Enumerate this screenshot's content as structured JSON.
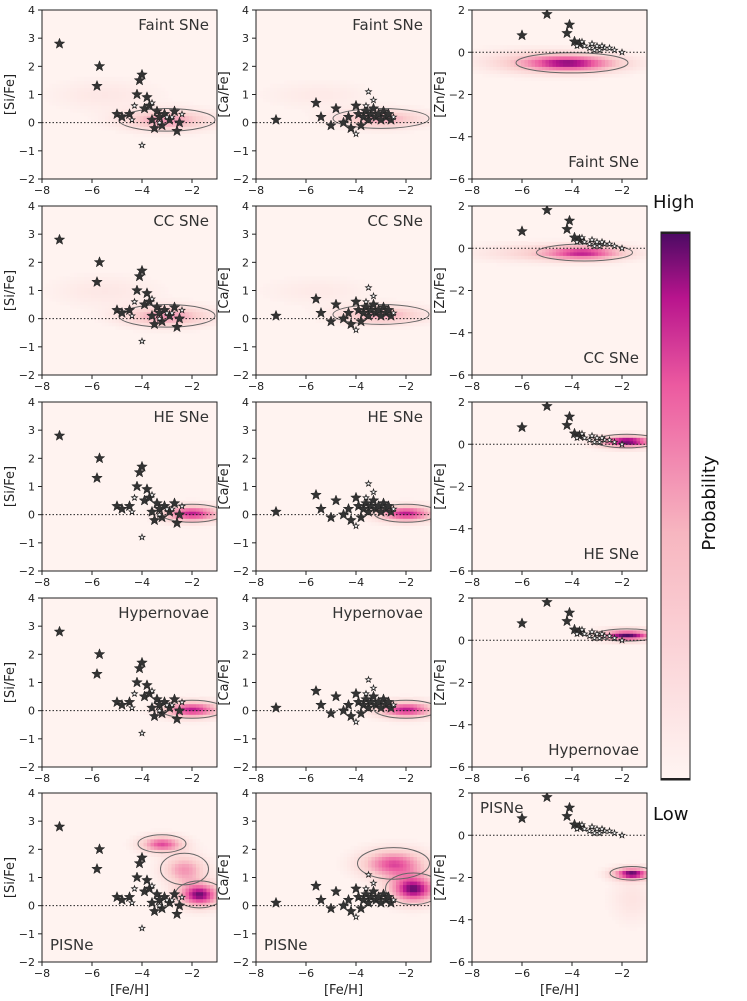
{
  "chart_data": {
    "type": "heatmap",
    "colorbar": {
      "title": "Probability",
      "high_label": "High",
      "low_label": "Low",
      "color_low": "#fff5f2",
      "color_mid": "#f27bb0",
      "color_high": "#4a0a63"
    },
    "xlabel": "[Fe/H]",
    "xlim": [
      -8,
      -1
    ],
    "xticks": [
      -8,
      -6,
      -4,
      -2
    ],
    "columns": [
      {
        "element": "Si",
        "ylabel": "[Si/Fe]",
        "ylim": [
          -2,
          4
        ],
        "yticks": [
          -2,
          -1,
          0,
          1,
          2,
          3,
          4
        ]
      },
      {
        "element": "Ca",
        "ylabel": "[Ca/Fe]",
        "ylim": [
          -2,
          4
        ],
        "yticks": [
          -2,
          -1,
          0,
          1,
          2,
          3,
          4
        ]
      },
      {
        "element": "Zn",
        "ylabel": "[Zn/Fe]",
        "ylim": [
          -6,
          2
        ],
        "yticks": [
          -6,
          -4,
          -2,
          0,
          2
        ]
      }
    ],
    "rows": [
      {
        "model": "Faint SNe",
        "panels": [
          {
            "label_pos": "top-right",
            "peak": {
              "x": -3.0,
              "y": 0.1
            },
            "blobs": [
              {
                "x": -3.0,
                "y": 0.1,
                "sx": 1.2,
                "sy": 0.25,
                "w": 0.55
              },
              {
                "x": -5.5,
                "y": 1.0,
                "sx": 1.5,
                "sy": 0.4,
                "w": 0.12
              }
            ]
          },
          {
            "label_pos": "top-right",
            "peak": {
              "x": -3.0,
              "y": 0.15
            },
            "blobs": [
              {
                "x": -3.0,
                "y": 0.15,
                "sx": 1.2,
                "sy": 0.22,
                "w": 0.5
              },
              {
                "x": -5.5,
                "y": 1.0,
                "sx": 1.5,
                "sy": 0.35,
                "w": 0.1
              }
            ]
          },
          {
            "label_pos": "bottom-right",
            "peak": {
              "x": -4.0,
              "y": -0.5
            },
            "blobs": [
              {
                "x": -4.0,
                "y": -0.5,
                "sx": 1.4,
                "sy": 0.3,
                "w": 0.85
              },
              {
                "x": -6.0,
                "y": -0.4,
                "sx": 1.5,
                "sy": 0.4,
                "w": 0.2
              }
            ]
          }
        ]
      },
      {
        "model": "CC SNe",
        "panels": [
          {
            "label_pos": "top-right",
            "peak": {
              "x": -3.0,
              "y": 0.1
            },
            "blobs": [
              {
                "x": -3.0,
                "y": 0.1,
                "sx": 1.2,
                "sy": 0.25,
                "w": 0.55
              },
              {
                "x": -5.5,
                "y": 1.0,
                "sx": 1.5,
                "sy": 0.4,
                "w": 0.12
              }
            ]
          },
          {
            "label_pos": "top-right",
            "peak": {
              "x": -3.0,
              "y": 0.15
            },
            "blobs": [
              {
                "x": -3.0,
                "y": 0.15,
                "sx": 1.2,
                "sy": 0.22,
                "w": 0.5
              },
              {
                "x": -5.5,
                "y": 1.0,
                "sx": 1.5,
                "sy": 0.35,
                "w": 0.1
              }
            ]
          },
          {
            "label_pos": "bottom-right",
            "peak": {
              "x": -3.5,
              "y": -0.2
            },
            "blobs": [
              {
                "x": -3.5,
                "y": -0.2,
                "sx": 1.2,
                "sy": 0.25,
                "w": 0.8
              },
              {
                "x": -6.0,
                "y": -0.2,
                "sx": 1.5,
                "sy": 0.3,
                "w": 0.2
              }
            ]
          }
        ]
      },
      {
        "model": "HE SNe",
        "panels": [
          {
            "label_pos": "top-right",
            "peak": {
              "x": -2.0,
              "y": 0.05
            },
            "blobs": [
              {
                "x": -2.0,
                "y": 0.05,
                "sx": 0.8,
                "sy": 0.2,
                "w": 0.85
              }
            ]
          },
          {
            "label_pos": "top-right",
            "peak": {
              "x": -2.0,
              "y": 0.05
            },
            "blobs": [
              {
                "x": -2.0,
                "y": 0.05,
                "sx": 0.8,
                "sy": 0.2,
                "w": 0.85
              }
            ]
          },
          {
            "label_pos": "bottom-right",
            "peak": {
              "x": -1.8,
              "y": 0.15
            },
            "blobs": [
              {
                "x": -1.8,
                "y": 0.15,
                "sx": 0.8,
                "sy": 0.2,
                "w": 1.0
              }
            ]
          }
        ]
      },
      {
        "model": "Hypernovae",
        "panels": [
          {
            "label_pos": "top-right",
            "peak": {
              "x": -2.0,
              "y": 0.05
            },
            "blobs": [
              {
                "x": -2.0,
                "y": 0.05,
                "sx": 0.8,
                "sy": 0.2,
                "w": 0.85
              }
            ]
          },
          {
            "label_pos": "top-right",
            "peak": {
              "x": -2.0,
              "y": 0.05
            },
            "blobs": [
              {
                "x": -2.0,
                "y": 0.05,
                "sx": 0.8,
                "sy": 0.2,
                "w": 0.85
              }
            ]
          },
          {
            "label_pos": "bottom-right",
            "peak": {
              "x": -1.8,
              "y": 0.25
            },
            "blobs": [
              {
                "x": -1.8,
                "y": 0.25,
                "sx": 0.8,
                "sy": 0.18,
                "w": 1.0
              }
            ]
          }
        ]
      },
      {
        "model": "PISNe",
        "panels": [
          {
            "label_pos": "bottom-left",
            "peak": {
              "x": -2.0,
              "y": 0.5
            },
            "blobs": [
              {
                "x": -3.2,
                "y": 2.2,
                "sx": 0.6,
                "sy": 0.2,
                "w": 0.75
              },
              {
                "x": -2.3,
                "y": 1.3,
                "sx": 0.6,
                "sy": 0.35,
                "w": 0.55
              },
              {
                "x": -1.7,
                "y": 0.4,
                "sx": 0.6,
                "sy": 0.3,
                "w": 0.95
              }
            ]
          },
          {
            "label_pos": "bottom-left",
            "peak": {
              "x": -1.8,
              "y": 0.5
            },
            "blobs": [
              {
                "x": -2.5,
                "y": 1.5,
                "sx": 0.9,
                "sy": 0.35,
                "w": 0.75
              },
              {
                "x": -1.7,
                "y": 0.6,
                "sx": 0.7,
                "sy": 0.35,
                "w": 0.95
              }
            ]
          },
          {
            "label_pos": "top-left",
            "peak": {
              "x": -1.6,
              "y": -1.8
            },
            "blobs": [
              {
                "x": -1.6,
                "y": -1.8,
                "sx": 0.55,
                "sy": 0.2,
                "w": 0.95
              },
              {
                "x": -1.6,
                "y": -3.0,
                "sx": 0.6,
                "sy": 0.8,
                "w": 0.15
              }
            ]
          }
        ]
      }
    ],
    "observed_stars": {
      "Si": [
        [
          -7.3,
          2.8,
          "big"
        ],
        [
          -5.7,
          2.0,
          "big"
        ],
        [
          -5.8,
          1.3,
          "big"
        ],
        [
          -5.0,
          0.3,
          "big"
        ],
        [
          -4.8,
          0.2,
          "big"
        ],
        [
          -4.5,
          0.3,
          "big"
        ],
        [
          -4.2,
          1.0,
          "big"
        ],
        [
          -4.0,
          1.7,
          "big"
        ],
        [
          -4.1,
          1.5,
          "big"
        ],
        [
          -3.8,
          0.9,
          "big"
        ],
        [
          -3.9,
          0.5,
          "big"
        ],
        [
          -3.7,
          0.6,
          "big"
        ],
        [
          -3.6,
          0.1,
          "big"
        ],
        [
          -3.4,
          0.4,
          "big"
        ],
        [
          -3.3,
          0.2,
          "big"
        ],
        [
          -3.1,
          0.3,
          "big"
        ],
        [
          -2.9,
          0.1,
          "big"
        ],
        [
          -2.7,
          0.4,
          "big"
        ],
        [
          -2.5,
          0.0,
          "big"
        ],
        [
          -2.6,
          -0.3,
          "big"
        ],
        [
          -3.5,
          -0.2,
          "big"
        ],
        [
          -3.2,
          -0.1,
          "big"
        ],
        [
          -4.4,
          0.1,
          "small"
        ],
        [
          -3.0,
          0.2,
          "small"
        ],
        [
          -3.3,
          0.0,
          "small"
        ],
        [
          -2.8,
          0.2,
          "small"
        ],
        [
          -4.0,
          -0.8,
          "small"
        ],
        [
          -3.6,
          0.7,
          "small"
        ],
        [
          -4.3,
          0.6,
          "small"
        ],
        [
          -2.4,
          0.3,
          "small"
        ]
      ],
      "Ca": [
        [
          -7.2,
          0.1,
          "big"
        ],
        [
          -5.6,
          0.7,
          "big"
        ],
        [
          -5.4,
          0.2,
          "big"
        ],
        [
          -5.0,
          -0.1,
          "big"
        ],
        [
          -4.8,
          0.5,
          "big"
        ],
        [
          -4.5,
          0.0,
          "big"
        ],
        [
          -4.3,
          0.2,
          "big"
        ],
        [
          -4.2,
          -0.2,
          "big"
        ],
        [
          -4.0,
          0.6,
          "big"
        ],
        [
          -3.9,
          0.3,
          "big"
        ],
        [
          -3.7,
          0.2,
          "big"
        ],
        [
          -3.6,
          0.4,
          "big"
        ],
        [
          -3.5,
          0.1,
          "big"
        ],
        [
          -3.4,
          0.3,
          "big"
        ],
        [
          -3.3,
          0.5,
          "big"
        ],
        [
          -3.2,
          0.2,
          "big"
        ],
        [
          -3.1,
          0.3,
          "big"
        ],
        [
          -3.0,
          0.1,
          "big"
        ],
        [
          -2.9,
          0.4,
          "big"
        ],
        [
          -2.8,
          0.2,
          "big"
        ],
        [
          -2.7,
          0.3,
          "big"
        ],
        [
          -2.6,
          0.1,
          "big"
        ],
        [
          -3.8,
          -0.1,
          "big"
        ],
        [
          -3.5,
          1.1,
          "small"
        ],
        [
          -3.3,
          0.8,
          "small"
        ],
        [
          -4.0,
          -0.4,
          "small"
        ],
        [
          -2.5,
          0.2,
          "small"
        ],
        [
          -3.6,
          0.6,
          "small"
        ]
      ],
      "Zn": [
        [
          -5.0,
          1.8,
          "big"
        ],
        [
          -6.0,
          0.8,
          "big"
        ],
        [
          -4.2,
          0.9,
          "big"
        ],
        [
          -4.1,
          1.3,
          "big"
        ],
        [
          -3.9,
          0.5,
          "big"
        ],
        [
          -3.7,
          0.4,
          "big"
        ],
        [
          -3.5,
          0.3,
          "small"
        ],
        [
          -3.3,
          0.2,
          "small"
        ],
        [
          -3.2,
          0.4,
          "small"
        ],
        [
          -3.0,
          0.3,
          "small"
        ],
        [
          -2.9,
          0.1,
          "small"
        ],
        [
          -2.7,
          0.2,
          "small"
        ],
        [
          -2.5,
          0.2,
          "small"
        ],
        [
          -2.3,
          0.1,
          "small"
        ],
        [
          -3.8,
          0.3,
          "small"
        ],
        [
          -3.6,
          0.5,
          "small"
        ],
        [
          -3.1,
          0.1,
          "small"
        ],
        [
          -2.8,
          0.3,
          "small"
        ],
        [
          -2.0,
          0.0,
          "small"
        ]
      ]
    },
    "legend": "colorbar-right",
    "grid": false
  }
}
